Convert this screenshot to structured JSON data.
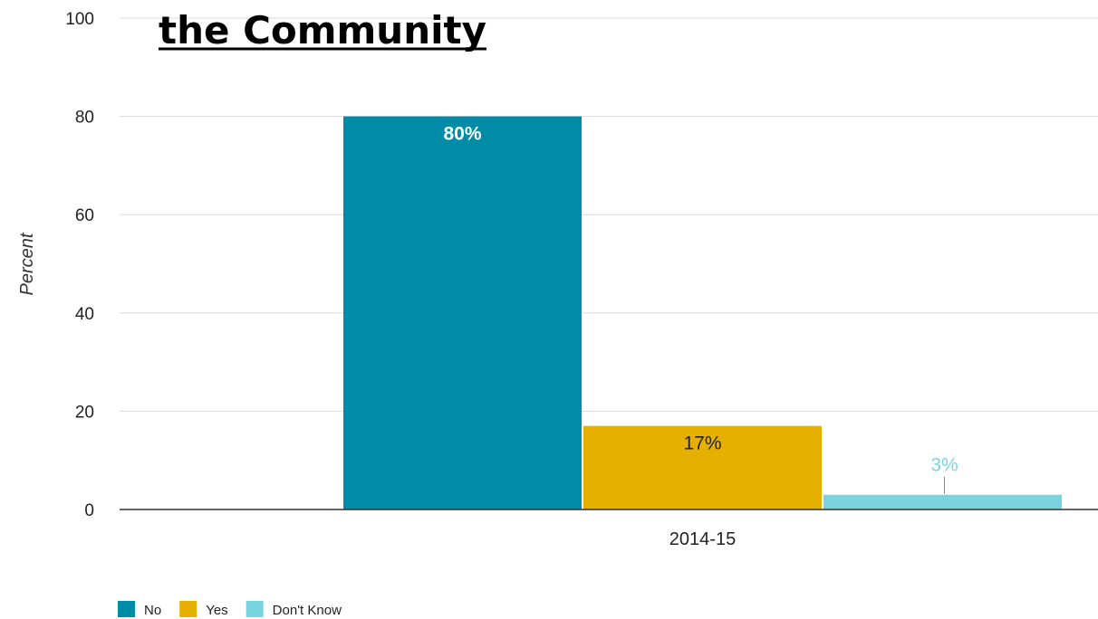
{
  "chart_data": {
    "type": "bar",
    "title": "the Community",
    "ylabel": "Percent",
    "xlabel": "",
    "ylim": [
      0,
      100
    ],
    "yticks": [
      0,
      20,
      40,
      60,
      80,
      100
    ],
    "grid": true,
    "legend_position": "bottom-left",
    "categories": [
      "2014-15"
    ],
    "series": [
      {
        "name": "No",
        "values": [
          80
        ],
        "label": "80%",
        "color": "#008ba6",
        "label_color": "#ffffff",
        "label_position": "inside"
      },
      {
        "name": "Yes",
        "values": [
          17
        ],
        "label": "17%",
        "color": "#e6b000",
        "label_color": "#222222",
        "label_position": "inside"
      },
      {
        "name": "Don't Know",
        "values": [
          3
        ],
        "label": "3%",
        "color": "#79d4df",
        "label_color": "#79d4df",
        "label_position": "above-leader"
      }
    ]
  }
}
